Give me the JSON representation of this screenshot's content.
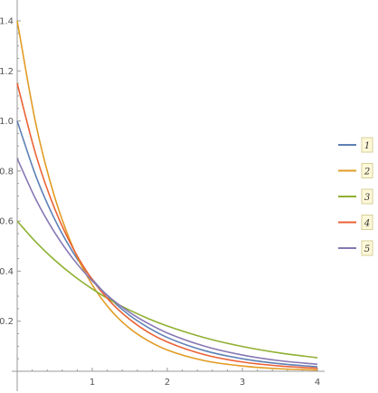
{
  "chart_data": {
    "type": "line",
    "title": "",
    "xlabel": "",
    "ylabel": "",
    "xlim": [
      0,
      4
    ],
    "ylim": [
      0,
      1.4
    ],
    "x_ticks": [
      1,
      2,
      3,
      4
    ],
    "y_ticks": [
      0.2,
      0.4,
      0.6,
      0.8,
      1.0,
      1.2,
      1.4
    ],
    "grid": false,
    "legend_position": "right",
    "series": [
      {
        "name": "1",
        "color": "#5e81b5",
        "points": [
          [
            0,
            1.0
          ],
          [
            0.25,
            0.779
          ],
          [
            0.5,
            0.607
          ],
          [
            0.75,
            0.472
          ],
          [
            1,
            0.368
          ],
          [
            1.25,
            0.287
          ],
          [
            1.5,
            0.223
          ],
          [
            1.75,
            0.174
          ],
          [
            2,
            0.135
          ],
          [
            2.5,
            0.082
          ],
          [
            3,
            0.05
          ],
          [
            3.5,
            0.03
          ],
          [
            4,
            0.018
          ]
        ]
      },
      {
        "name": "2",
        "color": "#e19c24",
        "points": [
          [
            0,
            1.4
          ],
          [
            0.25,
            0.986
          ],
          [
            0.5,
            0.695
          ],
          [
            0.75,
            0.49
          ],
          [
            1,
            0.345
          ],
          [
            1.25,
            0.243
          ],
          [
            1.5,
            0.171
          ],
          [
            1.75,
            0.121
          ],
          [
            2,
            0.085
          ],
          [
            2.5,
            0.042
          ],
          [
            3,
            0.021
          ],
          [
            3.5,
            0.01
          ],
          [
            4,
            0.005
          ]
        ]
      },
      {
        "name": "3",
        "color": "#8fb032",
        "points": [
          [
            0,
            0.6
          ],
          [
            0.25,
            0.516
          ],
          [
            0.5,
            0.444
          ],
          [
            0.75,
            0.382
          ],
          [
            1,
            0.329
          ],
          [
            1.25,
            0.283
          ],
          [
            1.5,
            0.244
          ],
          [
            1.75,
            0.21
          ],
          [
            2,
            0.181
          ],
          [
            2.5,
            0.134
          ],
          [
            3,
            0.099
          ],
          [
            3.5,
            0.073
          ],
          [
            4,
            0.054
          ]
        ]
      },
      {
        "name": "4",
        "color": "#eb6235",
        "points": [
          [
            0,
            1.15
          ],
          [
            0.25,
            0.864
          ],
          [
            0.5,
            0.649
          ],
          [
            0.75,
            0.488
          ],
          [
            1,
            0.366
          ],
          [
            1.25,
            0.275
          ],
          [
            1.5,
            0.207
          ],
          [
            1.75,
            0.155
          ],
          [
            2,
            0.117
          ],
          [
            2.5,
            0.066
          ],
          [
            3,
            0.037
          ],
          [
            3.5,
            0.021
          ],
          [
            4,
            0.012
          ]
        ]
      },
      {
        "name": "5",
        "color": "#8778b3",
        "points": [
          [
            0,
            0.85
          ],
          [
            0.25,
            0.686
          ],
          [
            0.5,
            0.554
          ],
          [
            0.75,
            0.447
          ],
          [
            1,
            0.361
          ],
          [
            1.25,
            0.291
          ],
          [
            1.5,
            0.235
          ],
          [
            1.75,
            0.19
          ],
          [
            2,
            0.153
          ],
          [
            2.5,
            0.1
          ],
          [
            3,
            0.065
          ],
          [
            3.5,
            0.042
          ],
          [
            4,
            0.028
          ]
        ]
      }
    ]
  }
}
